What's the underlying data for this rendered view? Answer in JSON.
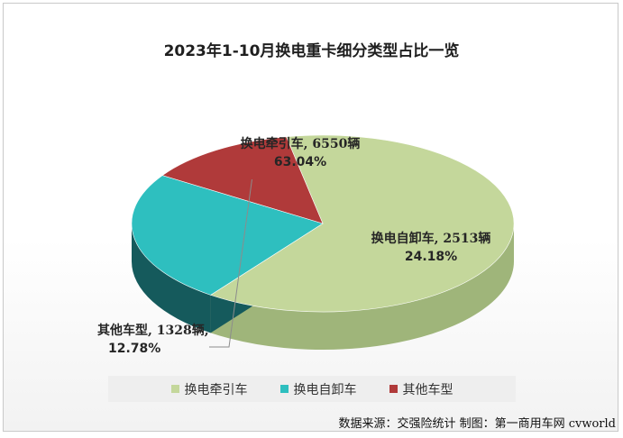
{
  "chart_data": {
    "type": "pie",
    "title": "2023年1-10月换电重卡细分类型占比一览",
    "slices": [
      {
        "name": "换电牵引车",
        "value": 6550,
        "percent": 63.04,
        "label": "换电牵引车, 6550辆",
        "percent_label": "63.04%",
        "color": "#c4d79b",
        "side_color": "#9fb57a"
      },
      {
        "name": "换电自卸车",
        "value": 2513,
        "percent": 24.18,
        "label": "换电自卸车, 2513辆",
        "percent_label": "24.18%",
        "color": "#2ebfbf",
        "side_color": "#155a5c"
      },
      {
        "name": "其他车型",
        "value": 1328,
        "percent": 12.78,
        "label": "其他车型, 1328辆,",
        "percent_label": "12.78%",
        "color": "#b03a3a",
        "side_color": "#6e2424"
      }
    ],
    "legend_position": "bottom",
    "style": "3d-pie"
  },
  "source_note": "数据来源：交强险统计  制图：第一商用车网 cvworld"
}
